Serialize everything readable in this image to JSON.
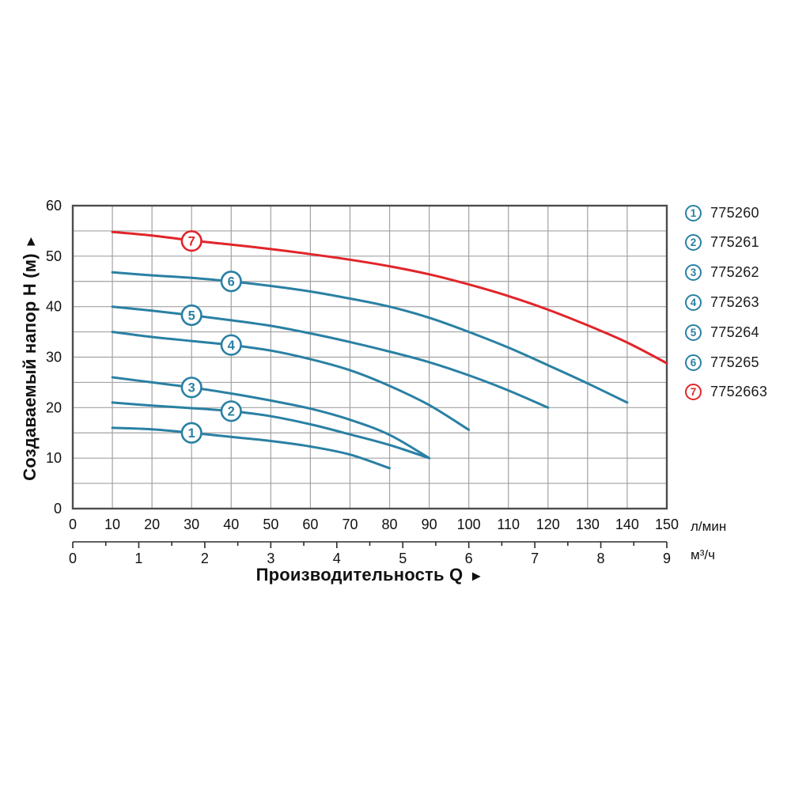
{
  "colors": {
    "teal": "#2a80a3",
    "red": "#e1252a",
    "grid": "#a2a2a2",
    "border": "#4d4d4d",
    "axis_line": "#2b2b2b",
    "text": "#111111"
  },
  "chart_data": {
    "type": "line",
    "ylabel": "Создаваемый напор H (м)",
    "ylabel_arrow": "▲",
    "xlabel": "Производительность Q",
    "xlabel_arrow": "►",
    "x_unit_primary": "л/мин",
    "x_unit_secondary": "м³/ч",
    "xlim_lmin": [
      0,
      150
    ],
    "xlim_m3h": [
      0,
      9
    ],
    "ylim": [
      0,
      60
    ],
    "x_ticks_lmin": [
      0,
      10,
      20,
      30,
      40,
      50,
      60,
      70,
      80,
      90,
      100,
      110,
      120,
      130,
      140,
      150
    ],
    "x_ticks_m3h": [
      0,
      1,
      2,
      3,
      4,
      5,
      6,
      7,
      8,
      9
    ],
    "m3h_minor_step": 0.5,
    "y_ticks": [
      0,
      10,
      20,
      30,
      40,
      50,
      60
    ],
    "grid": {
      "x_step_lmin": 10,
      "y_step_m": 5,
      "legend_position": "right"
    },
    "series": [
      {
        "num": "1",
        "code": "775260",
        "color": "teal",
        "marker_at": [
          30,
          15
        ],
        "points": [
          [
            10,
            16
          ],
          [
            20,
            15.7
          ],
          [
            30,
            15
          ],
          [
            40,
            14.2
          ],
          [
            50,
            13.4
          ],
          [
            60,
            12.3
          ],
          [
            70,
            10.7
          ],
          [
            80,
            8
          ]
        ]
      },
      {
        "num": "2",
        "code": "775261",
        "color": "teal",
        "marker_at": [
          40,
          19.3
        ],
        "points": [
          [
            10,
            21
          ],
          [
            20,
            20.4
          ],
          [
            30,
            19.9
          ],
          [
            40,
            19.3
          ],
          [
            50,
            18.3
          ],
          [
            60,
            16.7
          ],
          [
            70,
            14.7
          ],
          [
            80,
            12.6
          ],
          [
            90,
            10
          ]
        ]
      },
      {
        "num": "3",
        "code": "775262",
        "color": "teal",
        "marker_at": [
          30,
          24
        ],
        "points": [
          [
            10,
            26
          ],
          [
            20,
            25
          ],
          [
            30,
            24
          ],
          [
            40,
            22.8
          ],
          [
            50,
            21.4
          ],
          [
            60,
            19.8
          ],
          [
            70,
            17.6
          ],
          [
            80,
            14.6
          ],
          [
            90,
            10
          ]
        ]
      },
      {
        "num": "4",
        "code": "775263",
        "color": "teal",
        "marker_at": [
          40,
          32.4
        ],
        "points": [
          [
            10,
            35
          ],
          [
            20,
            34
          ],
          [
            30,
            33.2
          ],
          [
            40,
            32.4
          ],
          [
            50,
            31.3
          ],
          [
            60,
            29.6
          ],
          [
            70,
            27.4
          ],
          [
            80,
            24.3
          ],
          [
            90,
            20.5
          ],
          [
            100,
            15.6
          ]
        ]
      },
      {
        "num": "5",
        "code": "775264",
        "color": "teal",
        "marker_at": [
          30,
          38.3
        ],
        "points": [
          [
            10,
            40
          ],
          [
            20,
            39.2
          ],
          [
            30,
            38.3
          ],
          [
            40,
            37.3
          ],
          [
            50,
            36.2
          ],
          [
            60,
            34.7
          ],
          [
            70,
            33
          ],
          [
            80,
            31.1
          ],
          [
            90,
            29
          ],
          [
            100,
            26.4
          ],
          [
            110,
            23.4
          ],
          [
            120,
            20
          ]
        ]
      },
      {
        "num": "6",
        "code": "775265",
        "color": "teal",
        "marker_at": [
          40,
          45
        ],
        "points": [
          [
            10,
            46.8
          ],
          [
            20,
            46.2
          ],
          [
            30,
            45.7
          ],
          [
            40,
            45
          ],
          [
            50,
            44.1
          ],
          [
            60,
            43
          ],
          [
            70,
            41.6
          ],
          [
            80,
            40
          ],
          [
            90,
            37.8
          ],
          [
            100,
            35
          ],
          [
            110,
            31.9
          ],
          [
            120,
            28.4
          ],
          [
            130,
            24.8
          ],
          [
            140,
            21
          ]
        ]
      },
      {
        "num": "7",
        "code": "7752663",
        "color": "red",
        "marker_at": [
          30,
          53
        ],
        "points": [
          [
            10,
            54.8
          ],
          [
            20,
            54.1
          ],
          [
            30,
            53.1
          ],
          [
            40,
            52.3
          ],
          [
            50,
            51.4
          ],
          [
            60,
            50.4
          ],
          [
            70,
            49.3
          ],
          [
            80,
            48
          ],
          [
            90,
            46.4
          ],
          [
            100,
            44.4
          ],
          [
            110,
            42.1
          ],
          [
            120,
            39.4
          ],
          [
            130,
            36.3
          ],
          [
            140,
            32.9
          ],
          [
            150,
            28.8
          ]
        ]
      }
    ]
  },
  "legend": {
    "items": [
      {
        "num": "1",
        "code": "775260",
        "color": "teal"
      },
      {
        "num": "2",
        "code": "775261",
        "color": "teal"
      },
      {
        "num": "3",
        "code": "775262",
        "color": "teal"
      },
      {
        "num": "4",
        "code": "775263",
        "color": "teal"
      },
      {
        "num": "5",
        "code": "775264",
        "color": "teal"
      },
      {
        "num": "6",
        "code": "775265",
        "color": "teal"
      },
      {
        "num": "7",
        "code": "7752663",
        "color": "red"
      }
    ]
  }
}
